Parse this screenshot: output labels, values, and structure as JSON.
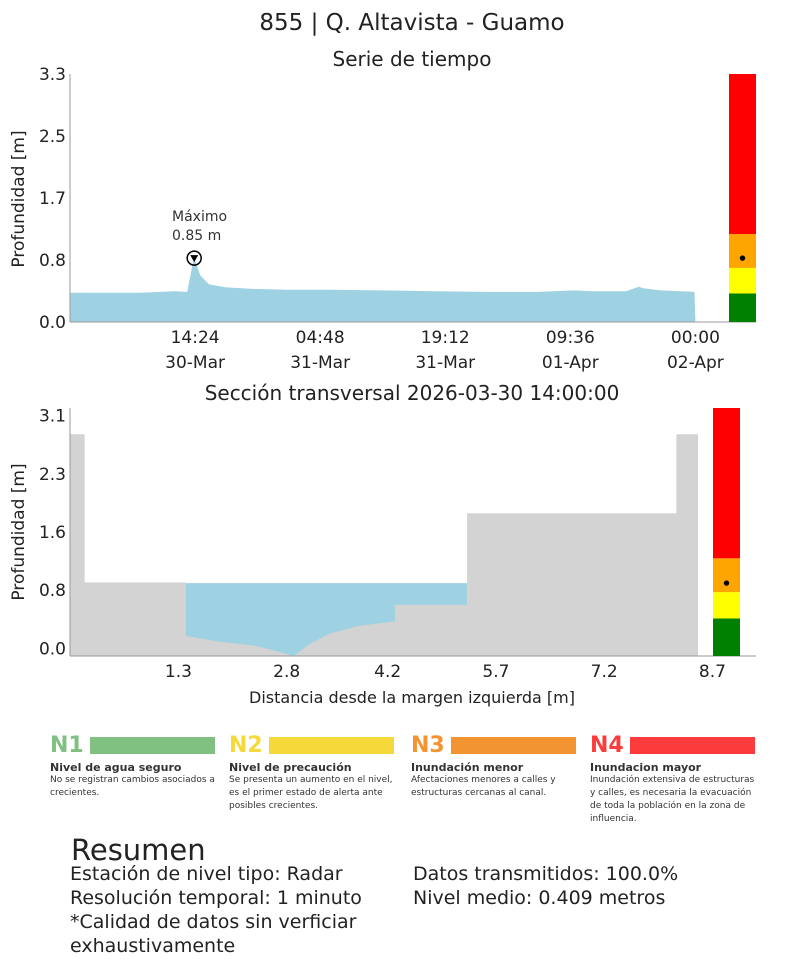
{
  "page_title": "855 | Q. Altavista - Guamo",
  "colors": {
    "water": "#9ed1e2",
    "ground": "#d3d3d3",
    "level_green": "#008000",
    "level_yellow": "#ffff00",
    "level_orange": "#ffa500",
    "level_red": "#ff0000"
  },
  "chart_data": [
    {
      "type": "area",
      "title": "Serie de tiempo",
      "ylabel": "Profundidad [m]",
      "ylim": [
        0,
        3.3
      ],
      "yticks": [
        "0.0",
        "0.8",
        "1.7",
        "2.5",
        "3.3"
      ],
      "ytick_values": [
        0,
        0.825,
        1.65,
        2.475,
        3.3
      ],
      "xticks": [
        {
          "time": "14:24",
          "date": "30-Mar"
        },
        {
          "time": "04:48",
          "date": "31-Mar"
        },
        {
          "time": "19:12",
          "date": "31-Mar"
        },
        {
          "time": "09:36",
          "date": "01-Apr"
        },
        {
          "time": "00:00",
          "date": "02-Apr"
        }
      ],
      "xtick_hours": [
        14.4,
        28.8,
        43.2,
        57.6,
        72.0
      ],
      "xlim_hours": [
        0,
        78
      ],
      "series": [
        {
          "x_hours": [
            0,
            4,
            8,
            12,
            13.5,
            14.0,
            14.3,
            15.0,
            16,
            18,
            21,
            25,
            30,
            36,
            42,
            48,
            54,
            58,
            60,
            64,
            65,
            65.5,
            66,
            68,
            71.9,
            72
          ],
          "values": [
            0.39,
            0.39,
            0.39,
            0.41,
            0.4,
            0.7,
            0.85,
            0.62,
            0.5,
            0.46,
            0.44,
            0.43,
            0.43,
            0.42,
            0.41,
            0.4,
            0.4,
            0.42,
            0.41,
            0.41,
            0.45,
            0.47,
            0.45,
            0.42,
            0.4,
            0.0
          ]
        }
      ],
      "annotation": {
        "label_line1": "Máximo",
        "label_line2": "0.85 m",
        "x_hours": 14.3,
        "value": 0.85
      },
      "level_bar": {
        "bands": [
          {
            "from": 0,
            "to": 0.38,
            "color": "#008000"
          },
          {
            "from": 0.38,
            "to": 0.72,
            "color": "#ffff00"
          },
          {
            "from": 0.72,
            "to": 1.17,
            "color": "#ffa500"
          },
          {
            "from": 1.17,
            "to": 3.3,
            "color": "#ff0000"
          }
        ],
        "marker_value": 0.85
      }
    },
    {
      "type": "area",
      "title": "Sección transversal 2026-03-30 14:00:00",
      "xlabel": "Distancia desde la margen izquierda [m]",
      "ylabel": "Profundidad [m]",
      "ylim": [
        -0.1,
        3.2
      ],
      "xlim": [
        -0.2,
        9.4
      ],
      "yticks": [
        "0.0",
        "0.8",
        "1.6",
        "2.3",
        "3.1"
      ],
      "ytick_values": [
        0,
        0.775,
        1.55,
        2.325,
        3.1
      ],
      "xticks": [
        "1.3",
        "2.8",
        "4.2",
        "5.7",
        "7.2",
        "8.7"
      ],
      "xtick_values": [
        1.3,
        2.8,
        4.2,
        5.7,
        7.2,
        8.7
      ],
      "ground_profile": {
        "x": [
          -0.2,
          0.0,
          0.0,
          1.4,
          1.4,
          1.8,
          2.4,
          2.6,
          2.9,
          3.1,
          3.4,
          3.8,
          4.3,
          4.3,
          5.3,
          5.3,
          7.2,
          7.2,
          8.2,
          8.2,
          8.5,
          8.5
        ],
        "values": [
          2.85,
          2.85,
          0.88,
          0.88,
          0.17,
          0.1,
          0.03,
          -0.02,
          -0.1,
          0.05,
          0.2,
          0.3,
          0.36,
          0.58,
          0.58,
          1.8,
          1.8,
          1.8,
          1.8,
          2.85,
          2.85,
          -0.1
        ]
      },
      "water_level": 0.87,
      "water_span": [
        1.4,
        5.3
      ],
      "level_bar": {
        "bands": [
          {
            "from": -0.1,
            "to": 0.4,
            "color": "#008000"
          },
          {
            "from": 0.4,
            "to": 0.75,
            "color": "#ffff00"
          },
          {
            "from": 0.75,
            "to": 1.2,
            "color": "#ffa500"
          },
          {
            "from": 1.2,
            "to": 3.2,
            "color": "#ff0000"
          }
        ],
        "marker_value": 0.87
      }
    }
  ],
  "levels": [
    {
      "code": "N1",
      "color": "#80c080",
      "title": "Nivel de agua seguro",
      "desc": "No se registran cambios asociados a crecientes."
    },
    {
      "code": "N2",
      "color": "#f5d93a",
      "title": "Nivel de precaución",
      "desc": "Se presenta un aumento en el nivel, es el primer estado de alerta ante posibles crecientes."
    },
    {
      "code": "N3",
      "color": "#f39432",
      "title": "Inundación menor",
      "desc": "Afectaciones menores a calles y estructuras cercanas al canal."
    },
    {
      "code": "N4",
      "color": "#fc3c3c",
      "title": "Inundacion mayor",
      "desc": "Inundación extensiva de estructuras y calles, es necesaria la evacuación de toda la población en la zona de influencia."
    }
  ],
  "summary": {
    "title": "Resumen",
    "station_type": "Estación de nivel tipo: Radar",
    "temporal_resolution": "Resolución temporal: 1 minuto",
    "quality_note": "*Calidad de datos sin verficiar exhaustivamente",
    "data_transmitted": "Datos transmitidos: 100.0%",
    "mean_level": "Nivel medio: 0.409 metros"
  }
}
